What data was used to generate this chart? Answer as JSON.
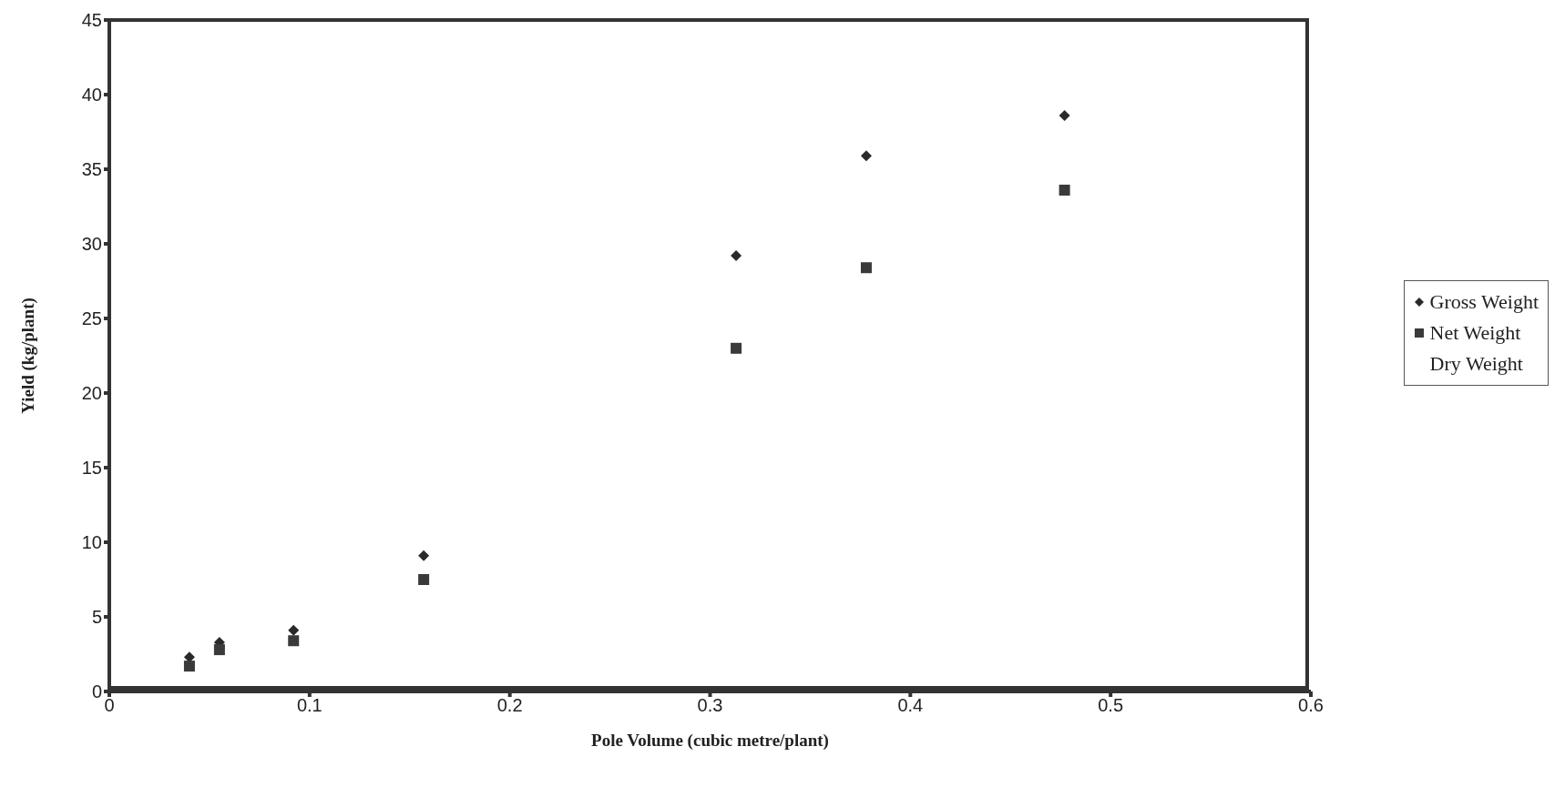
{
  "chart_data": {
    "type": "scatter",
    "xlabel": "Pole Volume (cubic metre/plant)",
    "ylabel": "Yield (kg/plant)",
    "x": [
      0.04,
      0.055,
      0.092,
      0.157,
      0.313,
      0.378,
      0.477
    ],
    "series": [
      {
        "name": "Gross Weight",
        "color": "#2a2a2a",
        "marker": "diamond",
        "values": [
          2.3,
          3.3,
          4.1,
          9.1,
          29.2,
          35.9,
          38.6
        ]
      },
      {
        "name": "Net Weight",
        "color": "#3a3a3a",
        "marker": "square",
        "values": [
          1.7,
          2.8,
          3.4,
          7.5,
          23.0,
          28.4,
          33.6
        ]
      },
      {
        "name": "Dry Weight",
        "marker": "none",
        "values": [
          null,
          null,
          null,
          null,
          null,
          null,
          null
        ]
      }
    ],
    "xlim": [
      0,
      0.6
    ],
    "xticks": [
      0,
      0.1,
      0.2,
      0.3,
      0.4,
      0.5,
      0.6
    ],
    "ylim": [
      0,
      45
    ],
    "yticks": [
      0,
      5,
      10,
      15,
      20,
      25,
      30,
      35,
      40,
      45
    ],
    "grid": false,
    "legend": "right"
  }
}
